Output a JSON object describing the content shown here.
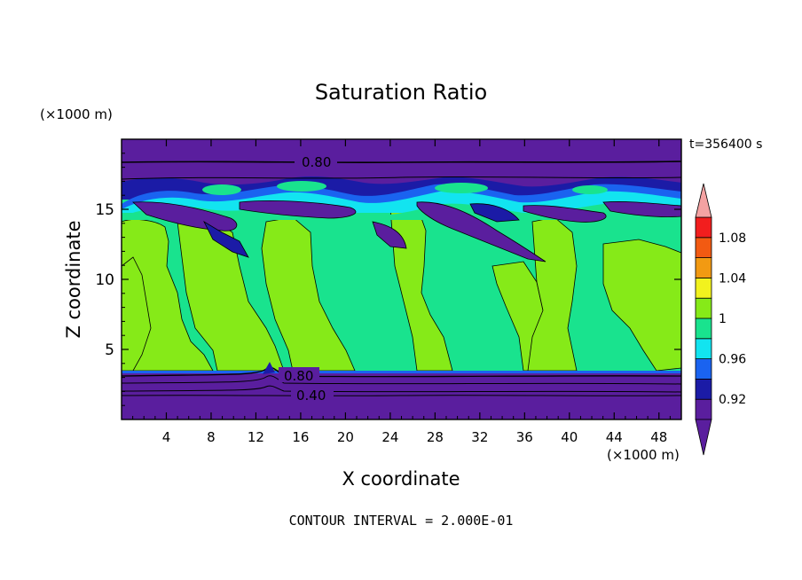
{
  "chart_data": {
    "type": "heatmap",
    "title": "Saturation Ratio",
    "xlabel": "X coordinate",
    "ylabel": "Z coordinate",
    "x_unit": "(×1000 m)",
    "y_unit": "(×1000 m)",
    "xlim": [
      0,
      50
    ],
    "ylim": [
      0,
      20
    ],
    "x_ticks": [
      4,
      8,
      12,
      16,
      20,
      24,
      28,
      32,
      36,
      40,
      44,
      48
    ],
    "y_ticks": [
      5,
      10,
      15
    ],
    "time_label": "t=356400 s",
    "footer": "CONTOUR INTERVAL = 2.000E-01",
    "colorbar": {
      "levels": [
        0.9,
        0.92,
        0.94,
        0.96,
        0.98,
        1.0,
        1.02,
        1.04,
        1.06,
        1.08,
        1.1
      ],
      "tick_labels": [
        "0.92",
        "0.96",
        "1",
        "1.04",
        "1.08"
      ],
      "tick_values": [
        0.92,
        0.96,
        1.0,
        1.04,
        1.08
      ],
      "colors": [
        "#5a1e9e",
        "#1b1ba6",
        "#1a63f0",
        "#12e4f0",
        "#19e38e",
        "#86ea18",
        "#f2f21e",
        "#f29a12",
        "#f25a12",
        "#f21e1e",
        "#f4a2a2"
      ]
    },
    "contour_labels": [
      {
        "text": "0.80",
        "x": 17.5,
        "y": 18.3
      },
      {
        "text": "0.80",
        "x": 16.0,
        "y": 3.1
      },
      {
        "text": "0.40",
        "x": 17.5,
        "y": 1.8
      }
    ],
    "regions": {
      "upper_dry_top": [
        18.4,
        20
      ],
      "upper_moist_band": [
        15.3,
        17.2
      ],
      "lower_dry": [
        0,
        3.3
      ],
      "mid_saturated_base": 3.6,
      "cloud_columns_x": [
        [
          1.5,
          11
        ],
        [
          12.5,
          18
        ],
        [
          23,
          28
        ],
        [
          33.5,
          40
        ],
        [
          44,
          49.5
        ]
      ]
    }
  }
}
